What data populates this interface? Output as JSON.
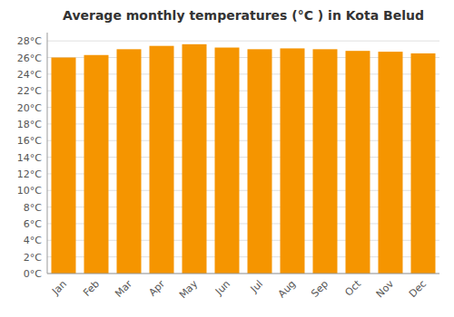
{
  "chart_data": {
    "type": "bar",
    "title": "Average monthly temperatures (°C ) in Kota Belud",
    "categories": [
      "Jan",
      "Feb",
      "Mar",
      "Apr",
      "May",
      "Jun",
      "Jul",
      "Aug",
      "Sep",
      "Oct",
      "Nov",
      "Dec"
    ],
    "values": [
      26.0,
      26.3,
      27.0,
      27.4,
      27.6,
      27.2,
      27.0,
      27.1,
      27.0,
      26.8,
      26.7,
      26.5
    ],
    "color": "#F59500",
    "ylim": [
      0,
      29
    ],
    "yticks": [
      {
        "value": 0,
        "label": "0°C"
      },
      {
        "value": 2,
        "label": "2°C"
      },
      {
        "value": 4,
        "label": "4°C"
      },
      {
        "value": 6,
        "label": "6°C"
      },
      {
        "value": 8,
        "label": "8°C"
      },
      {
        "value": 10,
        "label": "10°C"
      },
      {
        "value": 12,
        "label": "12°C"
      },
      {
        "value": 14,
        "label": "14°C"
      },
      {
        "value": 16,
        "label": "16°C"
      },
      {
        "value": 18,
        "label": "18°C"
      },
      {
        "value": 20,
        "label": "20°C"
      },
      {
        "value": 22,
        "label": "22°C"
      },
      {
        "value": 24,
        "label": "24°C"
      },
      {
        "value": 26,
        "label": "26°C"
      },
      {
        "value": 28,
        "label": "28°C"
      }
    ],
    "grid": true
  }
}
